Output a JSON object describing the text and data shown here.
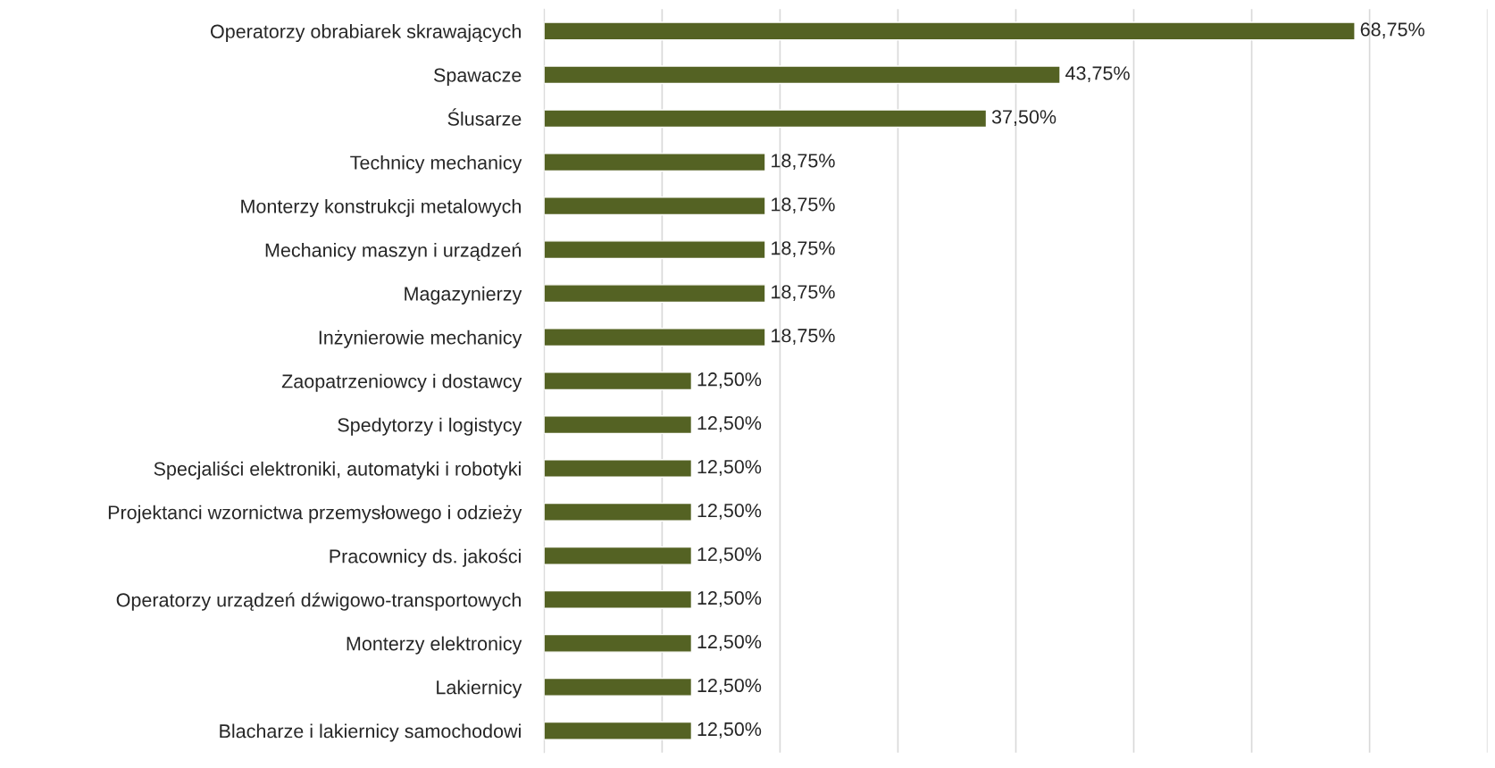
{
  "chart_data": {
    "type": "bar",
    "orientation": "horizontal",
    "categories": [
      "Operatorzy obrabiarek skrawających",
      "Spawacze",
      "Ślusarze",
      "Technicy mechanicy",
      "Monterzy konstrukcji metalowych",
      "Mechanicy maszyn i urządzeń",
      "Magazynierzy",
      "Inżynierowie mechanicy",
      "Zaopatrzeniowcy i dostawcy",
      "Spedytorzy i logistycy",
      "Specjaliści elektroniki, automatyki i robotyki",
      "Projektanci wzornictwa przemysłowego i odzieży",
      "Pracownicy ds. jakości",
      "Operatorzy urządzeń dźwigowo-transportowych",
      "Monterzy elektronicy",
      "Lakiernicy",
      "Blacharze i lakiernicy samochodowi"
    ],
    "values": [
      68.75,
      43.75,
      37.5,
      18.75,
      18.75,
      18.75,
      18.75,
      18.75,
      12.5,
      12.5,
      12.5,
      12.5,
      12.5,
      12.5,
      12.5,
      12.5,
      12.5
    ],
    "value_labels": [
      "68,75%",
      "43,75%",
      "37,50%",
      "18,75%",
      "18,75%",
      "18,75%",
      "18,75%",
      "18,75%",
      "12,50%",
      "12,50%",
      "12,50%",
      "12,50%",
      "12,50%",
      "12,50%",
      "12,50%",
      "12,50%",
      "12,50%"
    ],
    "color": "#546223",
    "xlim": [
      0,
      80
    ],
    "xticks": [
      {
        "value": 0,
        "label": null
      },
      {
        "value": 10,
        "label": null
      },
      {
        "value": 20,
        "label": null
      },
      {
        "value": 30,
        "label": null
      },
      {
        "value": 40,
        "label": null
      },
      {
        "value": 50,
        "label": null
      },
      {
        "value": 60,
        "label": null
      },
      {
        "value": 70,
        "label": null
      },
      {
        "value": 80,
        "label": null
      }
    ],
    "grid": "x",
    "tick_labels": "y"
  }
}
